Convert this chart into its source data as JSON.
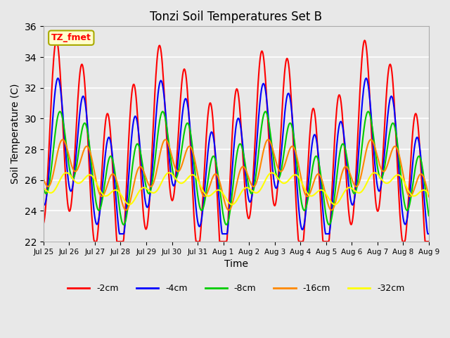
{
  "title": "Tonzi Soil Temperatures Set B",
  "xlabel": "Time",
  "ylabel": "Soil Temperature (C)",
  "ylim": [
    22,
    36
  ],
  "yticks": [
    22,
    24,
    26,
    28,
    30,
    32,
    34,
    36
  ],
  "background_color": "#e8e8e8",
  "annotation_text": "TZ_fmet",
  "annotation_bg": "#ffffcc",
  "annotation_border": "#aaaa00",
  "series_colors": {
    "-2cm": "#ff0000",
    "-4cm": "#0000ff",
    "-8cm": "#00cc00",
    "-16cm": "#ff8800",
    "-32cm": "#ffff00"
  },
  "series_lw": 1.5,
  "tick_labels": [
    "Jul 25",
    "Jul 26",
    "Jul 27",
    "Jul 28",
    "Jul 29",
    "Jul 30",
    "Jul 31",
    "Aug 1",
    "Aug 2",
    "Aug 3",
    "Aug 4",
    "Aug 5",
    "Aug 6",
    "Aug 7",
    "Aug 8",
    "Aug 9"
  ]
}
